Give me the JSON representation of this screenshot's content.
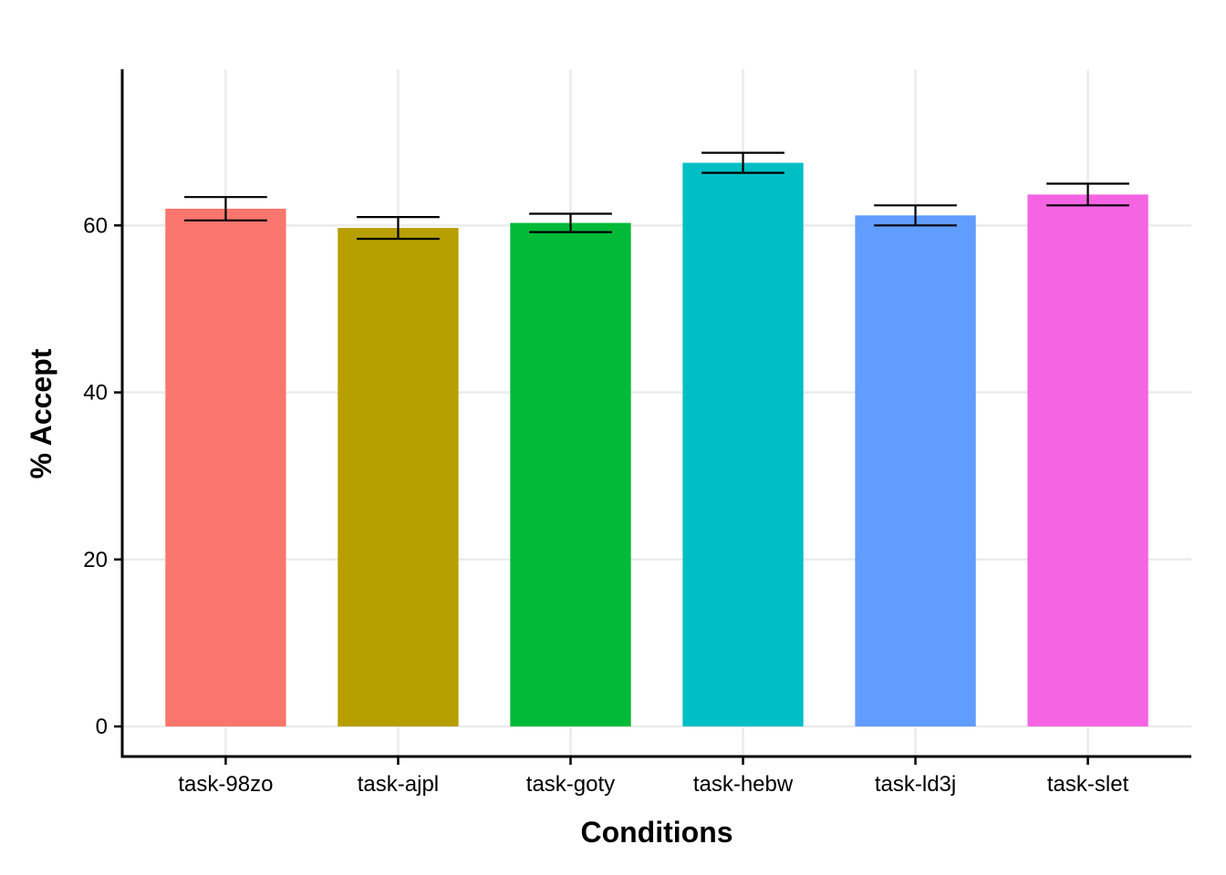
{
  "chart_data": {
    "type": "bar",
    "title": "",
    "xlabel": "Conditions",
    "ylabel": "% Accept",
    "categories": [
      "task-98zo",
      "task-ajpl",
      "task-goty",
      "task-hebw",
      "task-ld3j",
      "task-slet"
    ],
    "values": [
      62.0,
      59.7,
      60.3,
      67.5,
      61.2,
      63.7
    ],
    "error_low": [
      60.6,
      58.4,
      59.2,
      66.3,
      60.0,
      62.4
    ],
    "error_high": [
      63.4,
      61.0,
      61.4,
      68.7,
      62.4,
      65.0
    ],
    "colors": [
      "#F8766D",
      "#B79F00",
      "#00BA38",
      "#00BFC4",
      "#619CFF",
      "#F564E3"
    ],
    "yticks": [
      0,
      20,
      40,
      60
    ],
    "ytick_labels": [
      "0",
      "20",
      "40",
      "60"
    ],
    "ylim": [
      -3.6,
      78.7
    ],
    "grid": true,
    "legend": "none"
  }
}
